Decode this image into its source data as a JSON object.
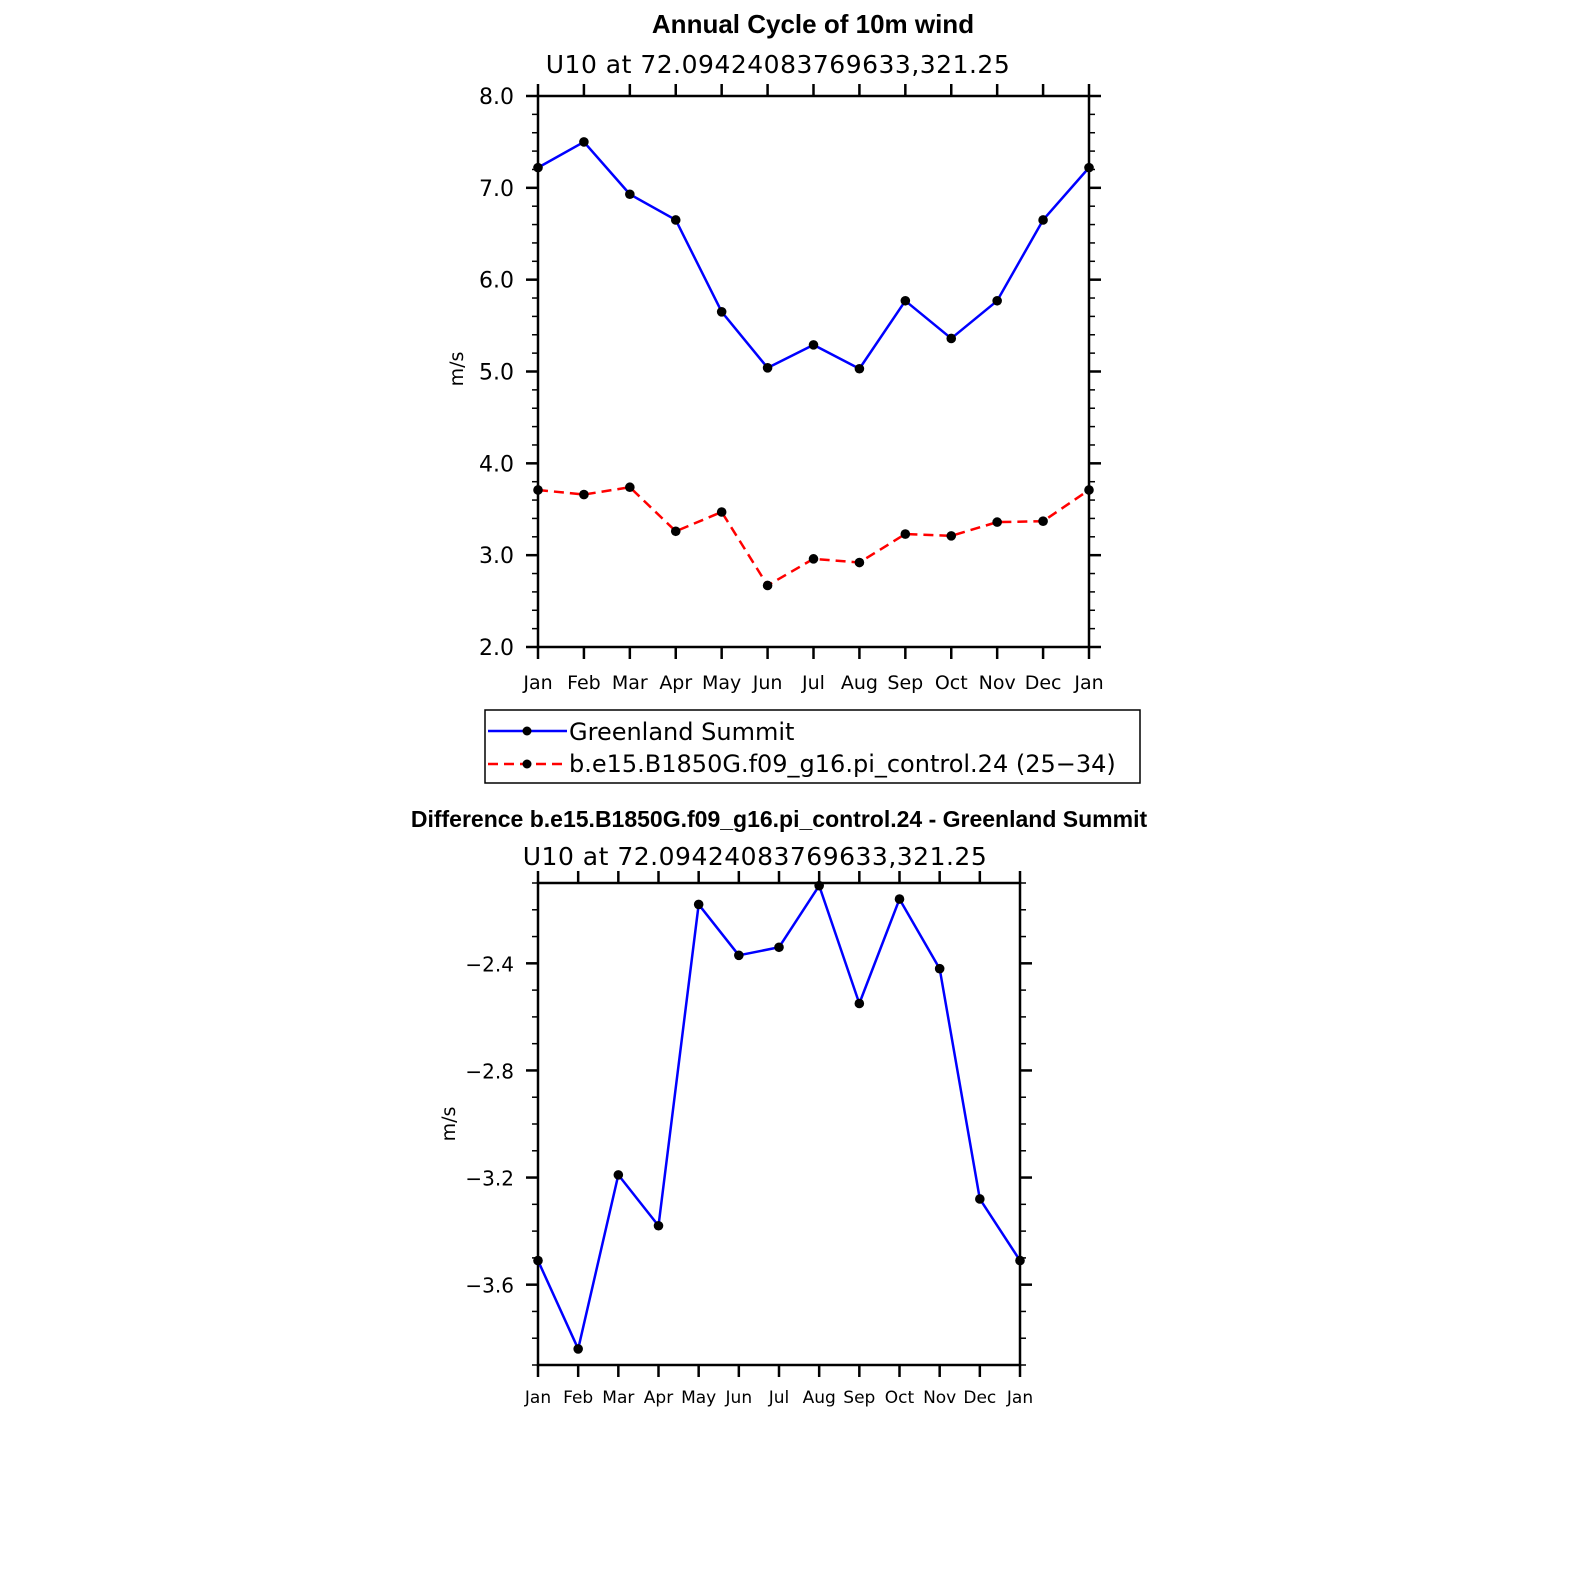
{
  "chart_data": [
    {
      "type": "line",
      "title": "Annual Cycle of 10m wind",
      "subtitle": "U10  at  72.09424083769633,321.25",
      "ylabel": "m/s",
      "xlabel": "",
      "ylim": [
        2.0,
        8.0
      ],
      "yticks": [
        "2.0",
        "3.0",
        "4.0",
        "5.0",
        "6.0",
        "7.0",
        "8.0"
      ],
      "categories": [
        "Jan",
        "Feb",
        "Mar",
        "Apr",
        "May",
        "Jun",
        "Jul",
        "Aug",
        "Sep",
        "Oct",
        "Nov",
        "Dec",
        "Jan"
      ],
      "series": [
        {
          "name": "Greenland Summit",
          "color": "#0000ff",
          "dash": "solid",
          "values": [
            7.22,
            7.5,
            6.93,
            6.65,
            5.65,
            5.04,
            5.29,
            5.03,
            5.77,
            5.36,
            5.77,
            6.65,
            7.22
          ]
        },
        {
          "name": "b.e15.B1850G.f09_g16.pi_control.24 (25−34)",
          "color": "#ff0000",
          "dash": "dashed",
          "values": [
            3.71,
            3.66,
            3.74,
            3.26,
            3.47,
            2.67,
            2.96,
            2.92,
            3.23,
            3.21,
            3.36,
            3.37,
            3.71
          ]
        }
      ],
      "legend_position": "bottom"
    },
    {
      "type": "line",
      "title": "Difference b.e15.B1850G.f09_g16.pi_control.24 - Greenland Summit",
      "subtitle": "U10  at  72.09424083769633,321.25",
      "ylabel": "m/s",
      "xlabel": "",
      "ylim": [
        -3.9,
        -2.1
      ],
      "yticks": [
        "−2.4",
        "−2.8",
        "−3.2",
        "−3.6"
      ],
      "ytick_values": [
        -2.4,
        -2.8,
        -3.2,
        -3.6
      ],
      "categories": [
        "Jan",
        "Feb",
        "Mar",
        "Apr",
        "May",
        "Jun",
        "Jul",
        "Aug",
        "Sep",
        "Oct",
        "Nov",
        "Dec",
        "Jan"
      ],
      "series": [
        {
          "color": "#0000ff",
          "dash": "solid",
          "values": [
            -3.51,
            -3.84,
            -3.19,
            -3.38,
            -2.18,
            -2.37,
            -2.34,
            -2.11,
            -2.55,
            -2.16,
            -2.42,
            -3.28,
            -3.51
          ]
        }
      ]
    }
  ]
}
